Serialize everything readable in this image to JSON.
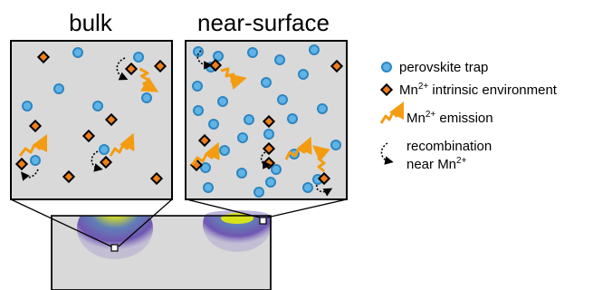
{
  "titles": {
    "bulk": "bulk",
    "near_surface": "near-surface"
  },
  "legend": {
    "trap_label": "perovskite trap",
    "mn_env_base": "Mn",
    "mn_env_sup": "2+",
    "mn_env_rest": " intrinsic environment",
    "emission_base": "Mn",
    "emission_sup": "2+",
    "emission_rest": " emission",
    "recomb_line1": "recombination",
    "recomb_line2_base": "near Mn",
    "recomb_line2_sup": "2+"
  },
  "colors": {
    "panel_fill": "#d9d9d9",
    "trap_fill": "#5fb3e6",
    "trap_stroke": "#2e86c1",
    "mn_fill": "#f07f1a",
    "mn_stroke": "#000000",
    "emission": "#f39c12",
    "substrate": "#d9d9d9",
    "blob_outer": "#6b5bb5",
    "blob_core": "#d4e21a"
  }
}
